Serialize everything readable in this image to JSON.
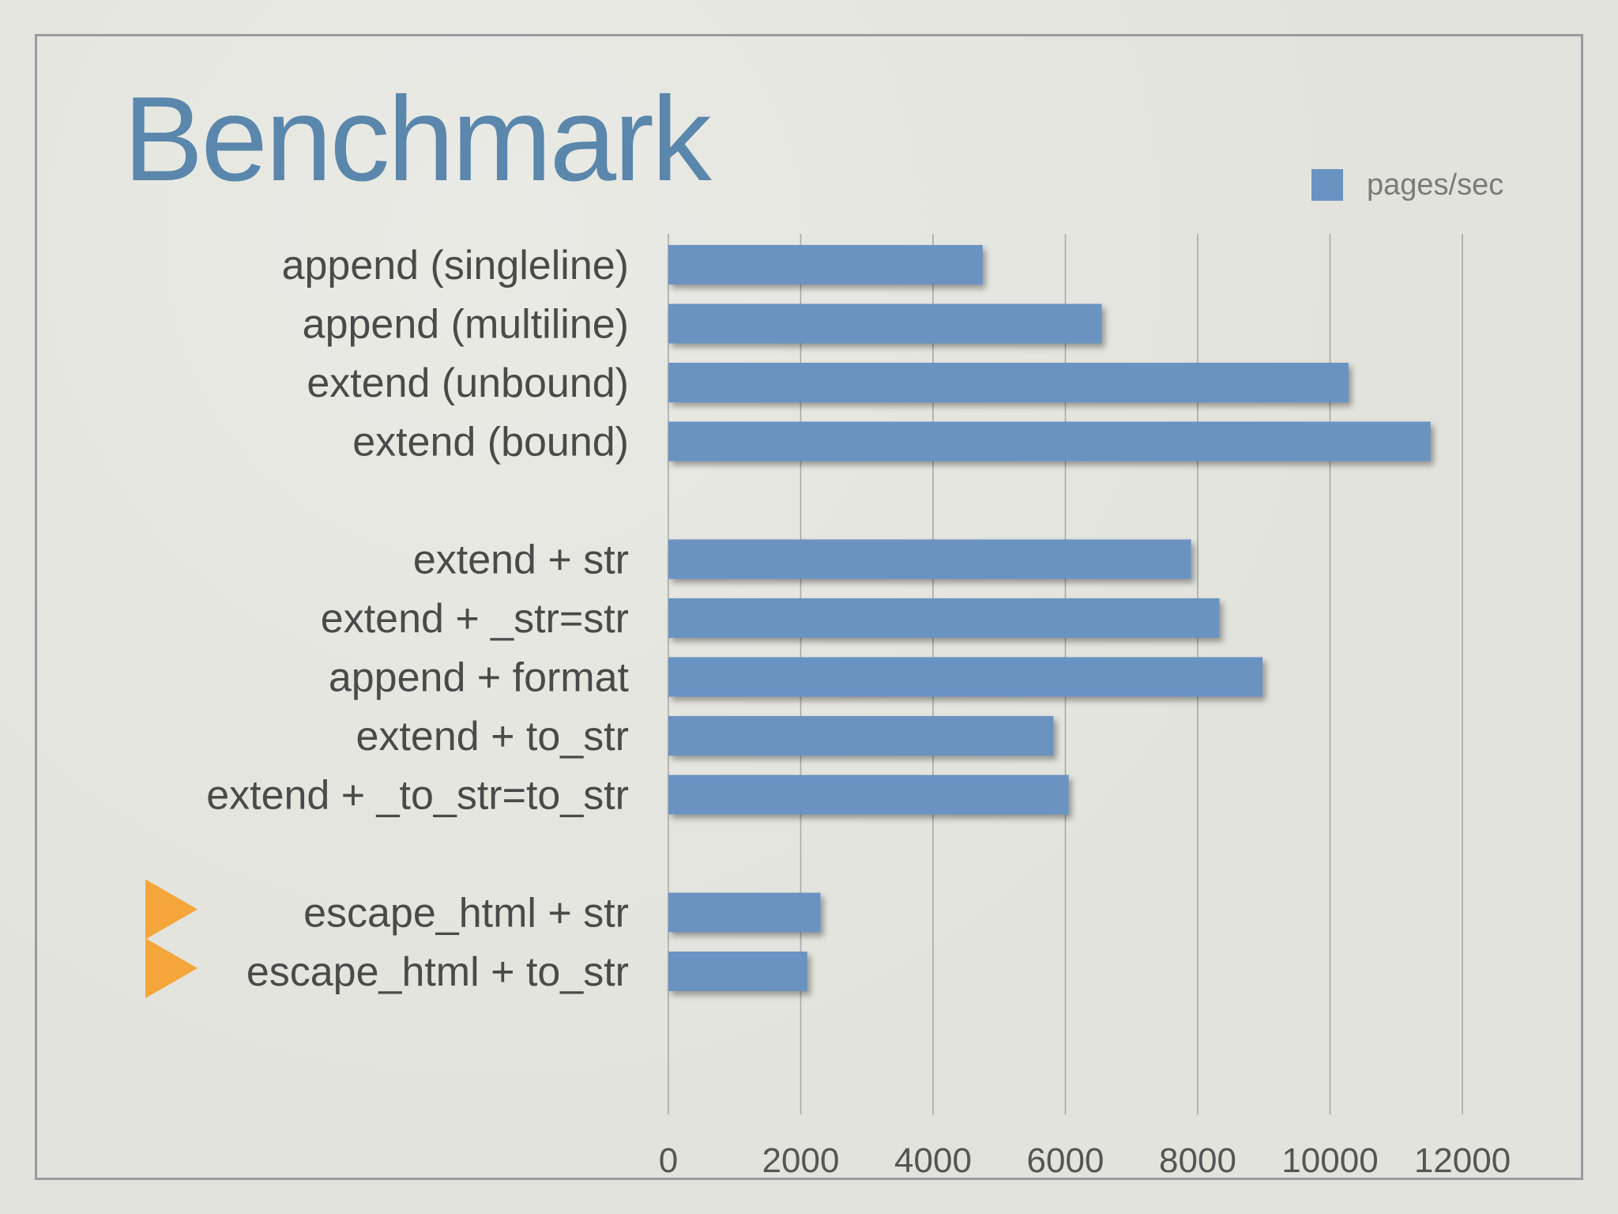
{
  "slide": {
    "title": "Benchmark"
  },
  "colors": {
    "bar": "#6b93c1",
    "marker": "#f4a63a",
    "title": "#5a87ab"
  },
  "chart_data": {
    "type": "bar",
    "orientation": "horizontal",
    "title": "",
    "xlabel": "",
    "ylabel": "",
    "xlim": [
      0,
      12000
    ],
    "xticks": [
      0,
      2000,
      4000,
      6000,
      8000,
      10000,
      12000
    ],
    "grid": true,
    "legend": "top-right",
    "series": [
      {
        "name": "pages/sec",
        "color": "#6b93c1"
      }
    ],
    "groups": [
      {
        "items": [
          {
            "label": "append (singleline)",
            "value": 4750
          },
          {
            "label": "append (multiline)",
            "value": 6550
          },
          {
            "label": "extend (unbound)",
            "value": 10280
          },
          {
            "label": "extend (bound)",
            "value": 11520
          }
        ]
      },
      {
        "items": [
          {
            "label": "extend + str",
            "value": 7900
          },
          {
            "label": "extend + _str=str",
            "value": 8330
          },
          {
            "label": "append + format",
            "value": 8980
          },
          {
            "label": "extend + to_str",
            "value": 5820
          },
          {
            "label": "extend + _to_str=to_str",
            "value": 6050
          }
        ]
      },
      {
        "items": [
          {
            "label": "escape_html + str",
            "value": 2300,
            "marked": true
          },
          {
            "label": "escape_html + to_str",
            "value": 2100,
            "marked": true
          }
        ]
      }
    ]
  }
}
